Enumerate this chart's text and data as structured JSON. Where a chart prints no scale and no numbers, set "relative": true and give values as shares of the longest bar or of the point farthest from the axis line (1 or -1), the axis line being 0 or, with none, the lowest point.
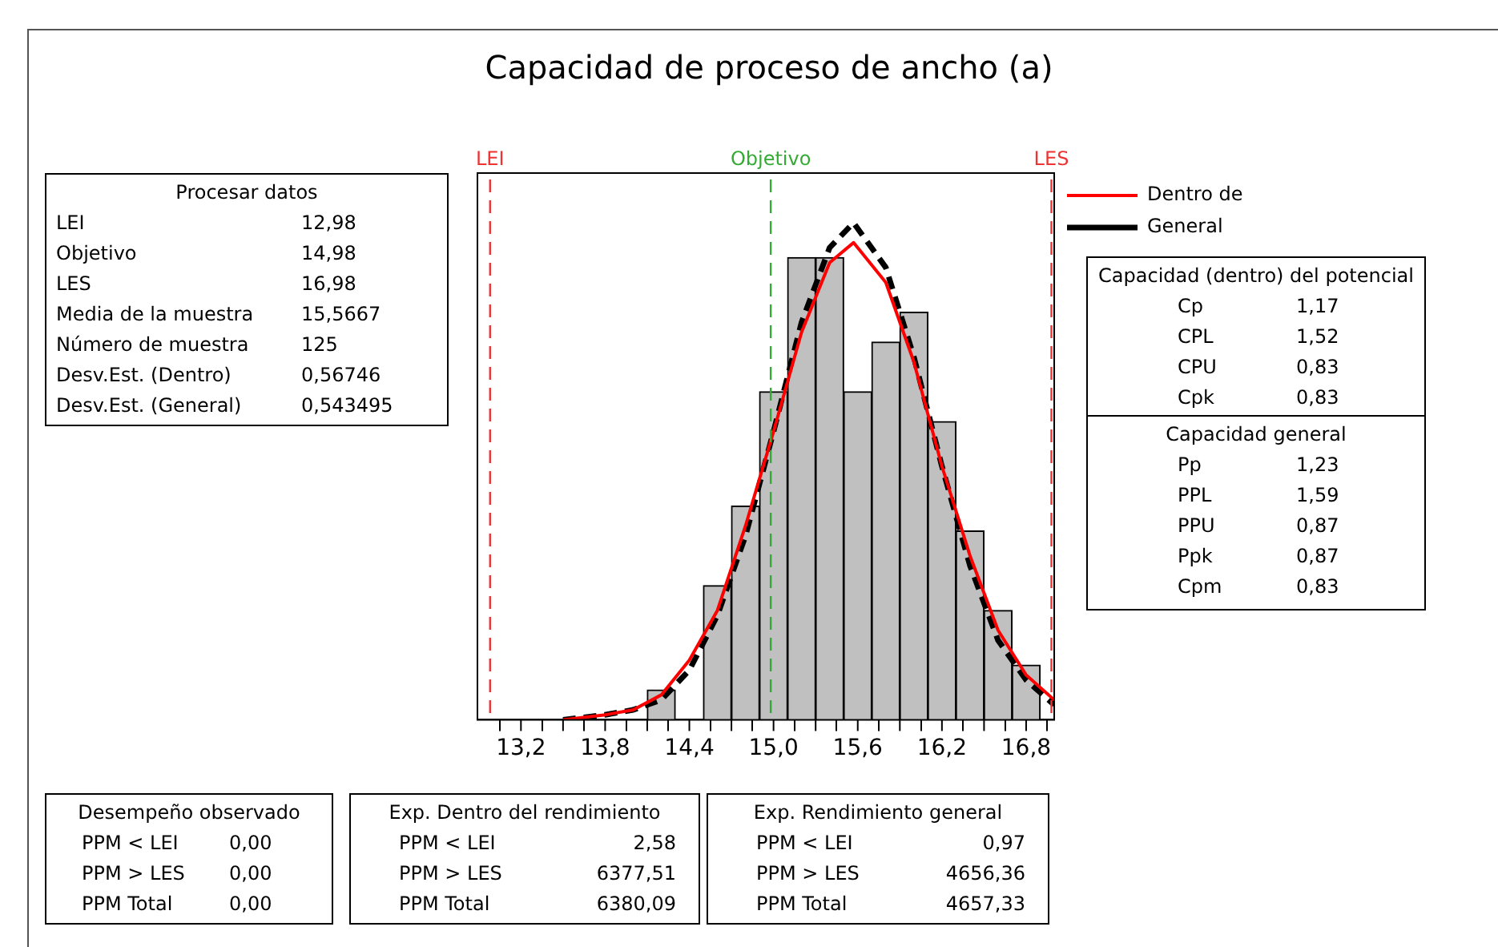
{
  "chart_data": {
    "type": "histogram",
    "title": "Capacidad de proceso de ancho (a)",
    "relative": true,
    "tick_labels": "x",
    "legend": "top right",
    "bins": [
      14.1,
      14.3,
      14.5,
      14.7,
      14.9,
      15.1,
      15.3,
      15.5,
      15.7,
      15.9,
      16.1,
      16.3,
      16.5,
      16.7,
      16.9
    ],
    "values": [
      0.06,
      0,
      0.27,
      0.43,
      0.66,
      0.93,
      0.93,
      0.66,
      0.76,
      0.82,
      0.6,
      0.38,
      0.22,
      0.11
    ],
    "color": "#c0c0c0",
    "xlim": [
      12.89,
      17.0
    ],
    "xticks": [
      {
        "value": 13.2,
        "label": "13,2"
      },
      {
        "value": 13.5,
        "label": null
      },
      {
        "value": 13.8,
        "label": "13,8"
      },
      {
        "value": 14.1,
        "label": null
      },
      {
        "value": 14.4,
        "label": "14,4"
      },
      {
        "value": 14.7,
        "label": null
      },
      {
        "value": 15.0,
        "label": "15,0"
      },
      {
        "value": 15.3,
        "label": null
      },
      {
        "value": 15.6,
        "label": "15,6"
      },
      {
        "value": 15.9,
        "label": null
      },
      {
        "value": 16.2,
        "label": "16,2"
      },
      {
        "value": 16.5,
        "label": null
      },
      {
        "value": 16.8,
        "label": "16,8"
      }
    ],
    "series": [
      {
        "type": "line",
        "name": "Dentro de",
        "color": "#ff0000",
        "line_style": "solid",
        "x": [
          13.5,
          13.8,
          14.0,
          14.2,
          14.4,
          14.6,
          14.8,
          15.0,
          15.2,
          15.4,
          15.57,
          15.8,
          16.0,
          16.2,
          16.4,
          16.6,
          16.8,
          17.0
        ],
        "values": [
          0.0,
          0.01,
          0.02,
          0.05,
          0.12,
          0.22,
          0.39,
          0.58,
          0.78,
          0.92,
          0.96,
          0.88,
          0.72,
          0.51,
          0.33,
          0.18,
          0.09,
          0.04
        ]
      },
      {
        "type": "line",
        "name": "General",
        "color": "#000000",
        "line_style": "dashed",
        "x": [
          13.5,
          13.8,
          14.0,
          14.2,
          14.4,
          14.6,
          14.8,
          15.0,
          15.2,
          15.4,
          15.57,
          15.8,
          16.0,
          16.2,
          16.4,
          16.6,
          16.8,
          17.0
        ],
        "values": [
          0.0,
          0.01,
          0.02,
          0.04,
          0.1,
          0.21,
          0.37,
          0.58,
          0.8,
          0.95,
          1.0,
          0.91,
          0.73,
          0.51,
          0.31,
          0.16,
          0.08,
          0.03
        ]
      }
    ],
    "ref_lines": [
      {
        "axis": "x",
        "value": 12.98,
        "label": "LEI",
        "color": "#ee3333",
        "line_style": "dashed"
      },
      {
        "axis": "x",
        "value": 14.98,
        "label": "Objetivo",
        "color": "#33aa33",
        "line_style": "dashed"
      },
      {
        "axis": "x",
        "value": 16.98,
        "label": "LES",
        "color": "#ee3333",
        "line_style": "dashed"
      }
    ],
    "annotations": [
      "Procesar datos\nLEI\t12,98\nObjetivo\t14,98\nLES\t16,98\nMedia de la muestra\t15,5667\nNúmero de muestra\t125\nDesv.Est. (Dentro)\t0,56746\nDesv.Est. (General)\t0,543495",
      "Capacidad (dentro) del potencial\nCp\t1,17\nCPL\t1,52\nCPU\t0,83\nCpk\t0,83",
      "Capacidad general\nPp\t1,23\nPPL\t1,59\nPPU\t0,87\nPpk\t0,87\nCpm\t0,83",
      "Desempeño observado\nPPM < LEI\t0,00\nPPM > LES\t0,00\nPPM Total\t0,00",
      "Exp. Dentro del rendimiento\nPPM < LEI\t2,58\nPPM > LES\t6377,51\nPPM Total\t6380,09",
      "Exp. Rendimiento general\nPPM < LEI\t0,97\nPPM > LES\t4656,36\nPPM Total\t4657,33"
    ]
  }
}
